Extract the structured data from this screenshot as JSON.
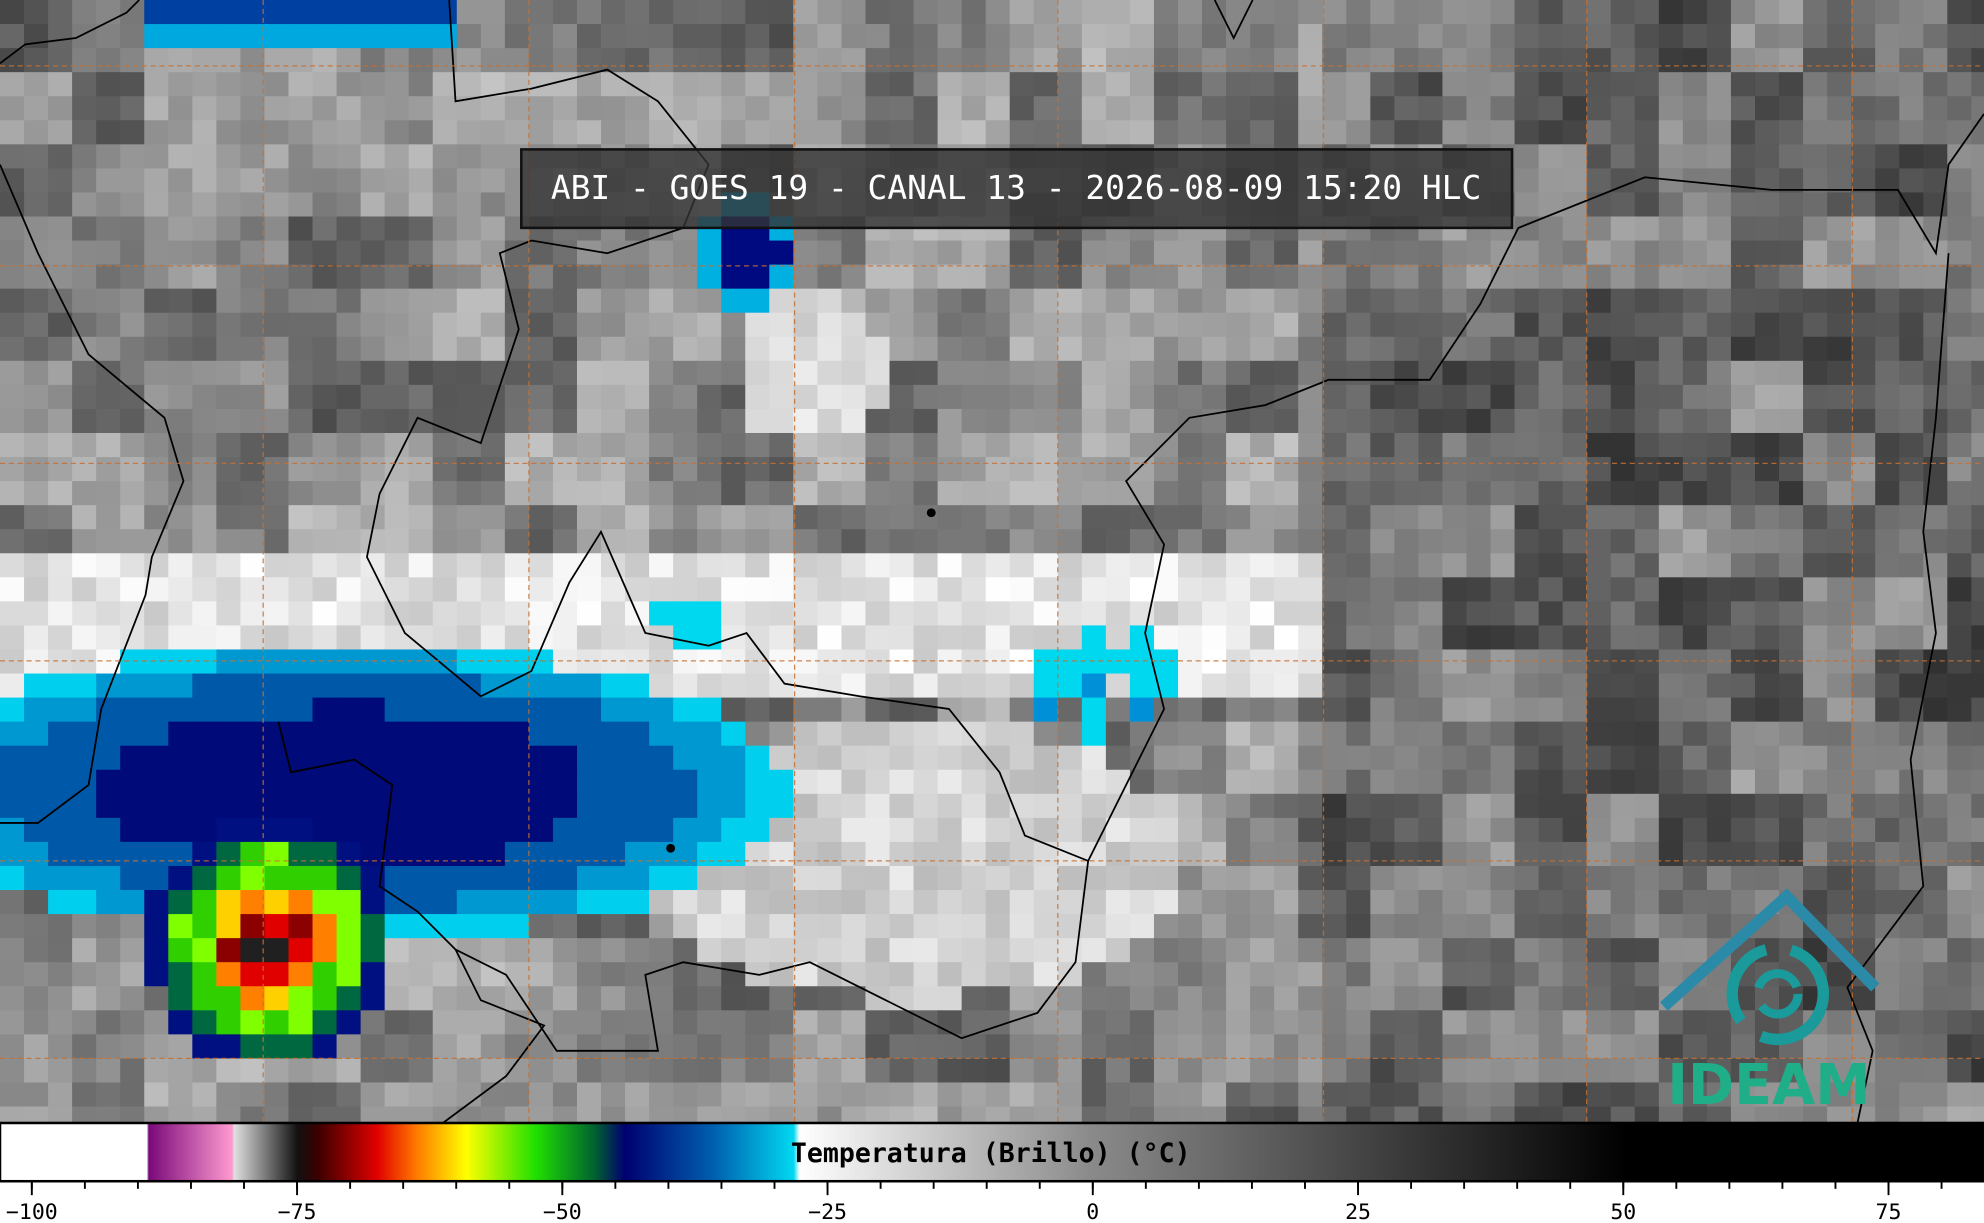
{
  "title": "ABI - GOES 19 - CANAL 13 - 2026-08-09 15:20 HLC",
  "colorbar": {
    "label": "Temperatura (Brillo) (°C)",
    "lim": [
      -103,
      84
    ],
    "ticks": [
      {
        "value": -100,
        "label": "−100"
      },
      {
        "value": -75,
        "label": "−75"
      },
      {
        "value": -50,
        "label": "−50"
      },
      {
        "value": -25,
        "label": "−25"
      },
      0,
      25,
      50,
      75
    ]
  },
  "logo": "IDEAM"
}
